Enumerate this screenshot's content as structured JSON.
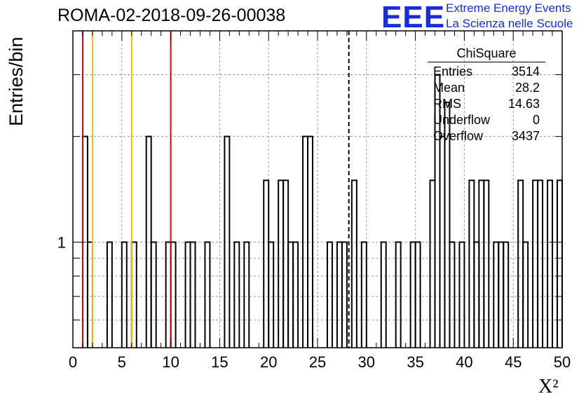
{
  "title": "ROMA-02-2018-09-26-00038",
  "logo": {
    "mark": "EEE",
    "line1": "Extreme Energy Events",
    "line2": "La Scienza nelle Scuole"
  },
  "colors": {
    "histogram": "#000000",
    "red_marker": "#e00000",
    "yellow_marker": "#f0c000",
    "logo": "#1a2bd9"
  },
  "stats": {
    "title": "ChiSquare",
    "rows": [
      {
        "label": "Entries",
        "value": "3514"
      },
      {
        "label": "Mean",
        "value": "28.2"
      },
      {
        "label": "RMS",
        "value": "14.63"
      },
      {
        "label": "Underflow",
        "value": "0"
      },
      {
        "label": "Overflow",
        "value": "3437"
      }
    ]
  },
  "chart_data": {
    "type": "bar",
    "histogram_step": true,
    "xlabel": "X²",
    "ylabel": "Entries/bin",
    "xlim": [
      0,
      50
    ],
    "ylim": [
      0.5,
      4
    ],
    "yscale": "log",
    "x_ticks": [
      0,
      5,
      10,
      15,
      20,
      25,
      30,
      35,
      40,
      45,
      50
    ],
    "y_ticks": [
      1
    ],
    "grid": true,
    "bin_width": 0.5,
    "bins": [
      {
        "x": 1.0,
        "y": 2
      },
      {
        "x": 1.5,
        "y": 1
      },
      {
        "x": 3.5,
        "y": 1
      },
      {
        "x": 5.0,
        "y": 1
      },
      {
        "x": 6.0,
        "y": 1
      },
      {
        "x": 7.5,
        "y": 2
      },
      {
        "x": 8.0,
        "y": 1
      },
      {
        "x": 9.5,
        "y": 1
      },
      {
        "x": 10.0,
        "y": 1
      },
      {
        "x": 11.5,
        "y": 1
      },
      {
        "x": 12.0,
        "y": 1
      },
      {
        "x": 13.5,
        "y": 1
      },
      {
        "x": 15.5,
        "y": 2
      },
      {
        "x": 16.5,
        "y": 1
      },
      {
        "x": 17.5,
        "y": 1
      },
      {
        "x": 19.5,
        "y": 1.5
      },
      {
        "x": 20.0,
        "y": 1
      },
      {
        "x": 21.0,
        "y": 1.5
      },
      {
        "x": 21.5,
        "y": 1.5
      },
      {
        "x": 22.0,
        "y": 1
      },
      {
        "x": 22.5,
        "y": 1
      },
      {
        "x": 23.5,
        "y": 2
      },
      {
        "x": 24.0,
        "y": 2
      },
      {
        "x": 26.0,
        "y": 1
      },
      {
        "x": 27.0,
        "y": 1
      },
      {
        "x": 27.5,
        "y": 1
      },
      {
        "x": 28.5,
        "y": 1.5
      },
      {
        "x": 29.5,
        "y": 1
      },
      {
        "x": 31.5,
        "y": 1
      },
      {
        "x": 33.0,
        "y": 1
      },
      {
        "x": 34.5,
        "y": 1
      },
      {
        "x": 35.0,
        "y": 1
      },
      {
        "x": 36.5,
        "y": 1.5
      },
      {
        "x": 37.0,
        "y": 3
      },
      {
        "x": 37.5,
        "y": 2
      },
      {
        "x": 38.0,
        "y": 2.5
      },
      {
        "x": 38.5,
        "y": 1
      },
      {
        "x": 39.5,
        "y": 1
      },
      {
        "x": 40.5,
        "y": 1.5
      },
      {
        "x": 41.0,
        "y": 1
      },
      {
        "x": 41.5,
        "y": 1.5
      },
      {
        "x": 42.0,
        "y": 1.5
      },
      {
        "x": 43.0,
        "y": 1
      },
      {
        "x": 43.5,
        "y": 1
      },
      {
        "x": 44.0,
        "y": 1
      },
      {
        "x": 45.5,
        "y": 1.5
      },
      {
        "x": 46.0,
        "y": 1
      },
      {
        "x": 47.0,
        "y": 1.5
      },
      {
        "x": 47.5,
        "y": 1.5
      },
      {
        "x": 48.5,
        "y": 1.5
      },
      {
        "x": 49.5,
        "y": 1.5
      }
    ],
    "markers": [
      {
        "x": 1,
        "color": "red"
      },
      {
        "x": 2,
        "color": "yellow"
      },
      {
        "x": 6,
        "color": "yellow"
      },
      {
        "x": 10,
        "color": "red"
      },
      {
        "x": 28.2,
        "color": "black",
        "style": "dashed"
      }
    ]
  }
}
